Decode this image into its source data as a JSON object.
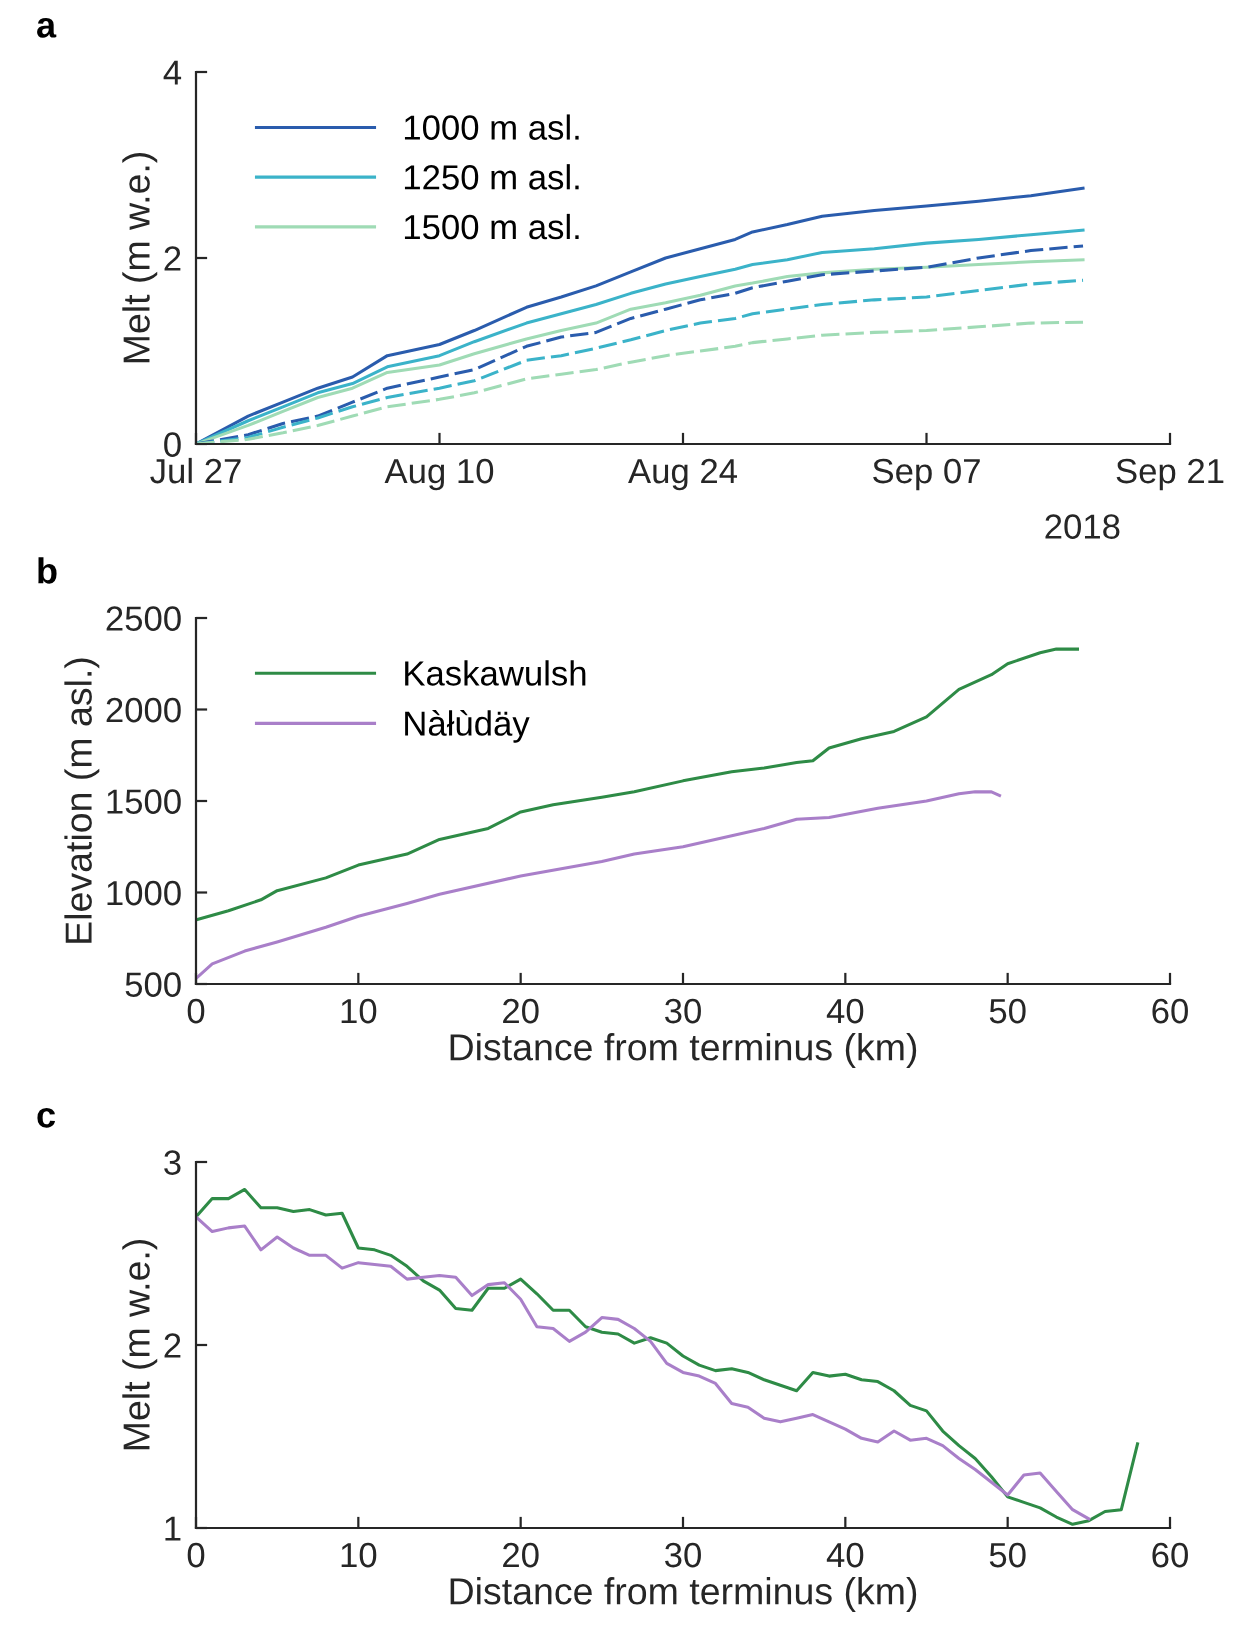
{
  "chart_data": [
    {
      "type": "line",
      "title": "a",
      "ylabel": "Melt (m w.e.)",
      "legend": "top left",
      "grid": false,
      "x": [
        "2018-07-27",
        "2018-07-30",
        "2018-08-01",
        "2018-08-03",
        "2018-08-05",
        "2018-08-07",
        "2018-08-10",
        "2018-08-12",
        "2018-08-15",
        "2018-08-17",
        "2018-08-19",
        "2018-08-21",
        "2018-08-23",
        "2018-08-25",
        "2018-08-27",
        "2018-08-28",
        "2018-08-30",
        "2018-09-01",
        "2018-09-04",
        "2018-09-07",
        "2018-09-10",
        "2018-09-13",
        "2018-09-16"
      ],
      "xlim": [
        "2018-07-27",
        "2018-09-21"
      ],
      "xticks": [
        {
          "value": "2018-07-27",
          "label": "Jul 27"
        },
        {
          "value": "2018-08-10",
          "label": "Aug 10"
        },
        {
          "value": "2018-08-24",
          "label": "Aug 24"
        },
        {
          "value": "2018-09-07",
          "label": "Sep 07"
        },
        {
          "value": "2018-09-21",
          "label": "Sep 21"
        }
      ],
      "ylim": [
        0,
        4
      ],
      "yticks": [
        0,
        2,
        4
      ],
      "annotations": [
        "2018"
      ],
      "series": [
        {
          "name": "1000 m asl.",
          "color": "#2a5cad",
          "line_style": "solid",
          "values": [
            0,
            0.3,
            0.45,
            0.6,
            0.72,
            0.95,
            1.07,
            1.22,
            1.47,
            1.58,
            1.7,
            1.85,
            2.0,
            2.1,
            2.2,
            2.28,
            2.36,
            2.45,
            2.51,
            2.56,
            2.61,
            2.67,
            2.75
          ]
        },
        {
          "name": "1250 m asl.",
          "color": "#3bb3c9",
          "line_style": "solid",
          "values": [
            0,
            0.25,
            0.4,
            0.55,
            0.65,
            0.83,
            0.95,
            1.1,
            1.3,
            1.4,
            1.5,
            1.62,
            1.72,
            1.8,
            1.88,
            1.93,
            1.98,
            2.06,
            2.1,
            2.16,
            2.2,
            2.25,
            2.3
          ]
        },
        {
          "name": "1500 m asl.",
          "color": "#9fdbb5",
          "line_style": "solid",
          "values": [
            0,
            0.2,
            0.35,
            0.5,
            0.6,
            0.77,
            0.85,
            0.97,
            1.13,
            1.22,
            1.3,
            1.45,
            1.52,
            1.6,
            1.7,
            1.73,
            1.8,
            1.84,
            1.88,
            1.9,
            1.93,
            1.96,
            1.98
          ]
        },
        {
          "color": "#2a5cad",
          "line_style": "dashed",
          "values": [
            0,
            0.1,
            0.22,
            0.3,
            0.45,
            0.6,
            0.72,
            0.8,
            1.05,
            1.15,
            1.2,
            1.35,
            1.45,
            1.55,
            1.62,
            1.68,
            1.75,
            1.82,
            1.86,
            1.9,
            2.0,
            2.08,
            2.13
          ]
        },
        {
          "color": "#3bb3c9",
          "line_style": "dashed",
          "values": [
            0,
            0.07,
            0.18,
            0.28,
            0.4,
            0.5,
            0.6,
            0.68,
            0.9,
            0.95,
            1.03,
            1.12,
            1.22,
            1.3,
            1.35,
            1.4,
            1.45,
            1.5,
            1.55,
            1.58,
            1.65,
            1.72,
            1.76
          ]
        },
        {
          "color": "#9fdbb5",
          "line_style": "dashed",
          "values": [
            0,
            0.05,
            0.12,
            0.2,
            0.3,
            0.4,
            0.48,
            0.55,
            0.7,
            0.75,
            0.8,
            0.88,
            0.95,
            1.0,
            1.05,
            1.09,
            1.13,
            1.17,
            1.2,
            1.22,
            1.26,
            1.3,
            1.31
          ]
        }
      ]
    },
    {
      "type": "line",
      "title": "b",
      "xlabel": "Distance from terminus (km)",
      "ylabel": "Elevation (m asl.)",
      "legend": "top left",
      "grid": false,
      "xlim": [
        0,
        60
      ],
      "xticks": [
        0,
        10,
        20,
        30,
        40,
        50,
        60
      ],
      "ylim": [
        500,
        2500
      ],
      "yticks": [
        500,
        1000,
        1500,
        2000,
        2500
      ],
      "series": [
        {
          "name": "Kaskawulsh",
          "color": "#2e8b46",
          "line_style": "solid",
          "x": [
            0,
            2,
            4,
            5,
            8,
            10,
            13,
            15,
            18,
            20,
            22,
            25,
            27,
            30,
            33,
            35,
            37,
            38,
            39,
            41,
            43,
            45,
            47,
            49,
            50,
            52,
            53,
            54.3
          ],
          "values": [
            850,
            900,
            960,
            1010,
            1080,
            1150,
            1210,
            1290,
            1350,
            1440,
            1480,
            1520,
            1550,
            1610,
            1660,
            1680,
            1710,
            1720,
            1790,
            1840,
            1880,
            1960,
            2110,
            2190,
            2250,
            2310,
            2330,
            2330
          ]
        },
        {
          "name": "Nàłùdäy",
          "color": "#a97fc9",
          "line_style": "solid",
          "x": [
            0,
            1,
            3,
            5,
            8,
            10,
            13,
            15,
            20,
            25,
            27,
            30,
            33,
            35,
            37,
            39,
            42,
            45,
            47,
            48,
            49,
            49.5
          ],
          "values": [
            530,
            610,
            680,
            730,
            810,
            870,
            940,
            990,
            1090,
            1170,
            1210,
            1250,
            1310,
            1350,
            1400,
            1410,
            1460,
            1500,
            1540,
            1550,
            1550,
            1530
          ]
        }
      ]
    },
    {
      "type": "line",
      "title": "c",
      "xlabel": "Distance from terminus (km)",
      "ylabel": "Melt (m w.e.)",
      "grid": false,
      "xlim": [
        0,
        60
      ],
      "xticks": [
        0,
        10,
        20,
        30,
        40,
        50,
        60
      ],
      "ylim": [
        1,
        3
      ],
      "yticks": [
        1,
        2,
        3
      ],
      "series": [
        {
          "color": "#2e8b46",
          "line_style": "solid",
          "x": [
            0,
            1,
            2,
            3,
            4,
            5,
            6,
            7,
            8,
            9,
            10,
            11,
            12,
            13,
            14,
            15,
            16,
            17,
            18,
            19,
            20,
            21,
            22,
            23,
            24,
            25,
            26,
            27,
            28,
            29,
            30,
            31,
            32,
            33,
            34,
            35,
            36,
            37,
            38,
            39,
            40,
            41,
            42,
            43,
            44,
            45,
            46,
            47,
            48,
            49,
            50,
            51,
            52,
            53,
            54,
            55,
            56,
            57,
            58
          ],
          "values": [
            2.7,
            2.8,
            2.8,
            2.85,
            2.75,
            2.75,
            2.73,
            2.74,
            2.71,
            2.72,
            2.53,
            2.52,
            2.49,
            2.43,
            2.35,
            2.3,
            2.2,
            2.19,
            2.31,
            2.31,
            2.36,
            2.28,
            2.19,
            2.19,
            2.1,
            2.07,
            2.06,
            2.01,
            2.04,
            2.01,
            1.94,
            1.89,
            1.86,
            1.87,
            1.85,
            1.81,
            1.78,
            1.75,
            1.85,
            1.83,
            1.84,
            1.81,
            1.8,
            1.75,
            1.67,
            1.64,
            1.53,
            1.45,
            1.38,
            1.28,
            1.17,
            1.14,
            1.11,
            1.06,
            1.02,
            1.04,
            1.09,
            1.1,
            1.46
          ]
        },
        {
          "color": "#a97fc9",
          "line_style": "solid",
          "x": [
            0,
            1,
            2,
            3,
            4,
            5,
            6,
            7,
            8,
            9,
            10,
            11,
            12,
            13,
            14,
            15,
            16,
            17,
            18,
            19,
            20,
            21,
            22,
            23,
            24,
            25,
            26,
            27,
            28,
            29,
            30,
            31,
            32,
            33,
            34,
            35,
            36,
            37,
            38,
            39,
            40,
            41,
            42,
            43,
            44,
            45,
            46,
            47,
            48,
            49,
            50,
            51,
            52,
            53,
            54,
            55
          ],
          "values": [
            2.7,
            2.62,
            2.64,
            2.65,
            2.52,
            2.59,
            2.53,
            2.49,
            2.49,
            2.42,
            2.45,
            2.44,
            2.43,
            2.36,
            2.37,
            2.38,
            2.37,
            2.27,
            2.33,
            2.34,
            2.25,
            2.1,
            2.09,
            2.02,
            2.07,
            2.15,
            2.14,
            2.09,
            2.02,
            1.9,
            1.85,
            1.83,
            1.79,
            1.68,
            1.66,
            1.6,
            1.58,
            1.6,
            1.62,
            1.58,
            1.54,
            1.49,
            1.47,
            1.53,
            1.48,
            1.49,
            1.45,
            1.38,
            1.32,
            1.25,
            1.18,
            1.29,
            1.3,
            1.2,
            1.1,
            1.05
          ]
        }
      ]
    }
  ]
}
